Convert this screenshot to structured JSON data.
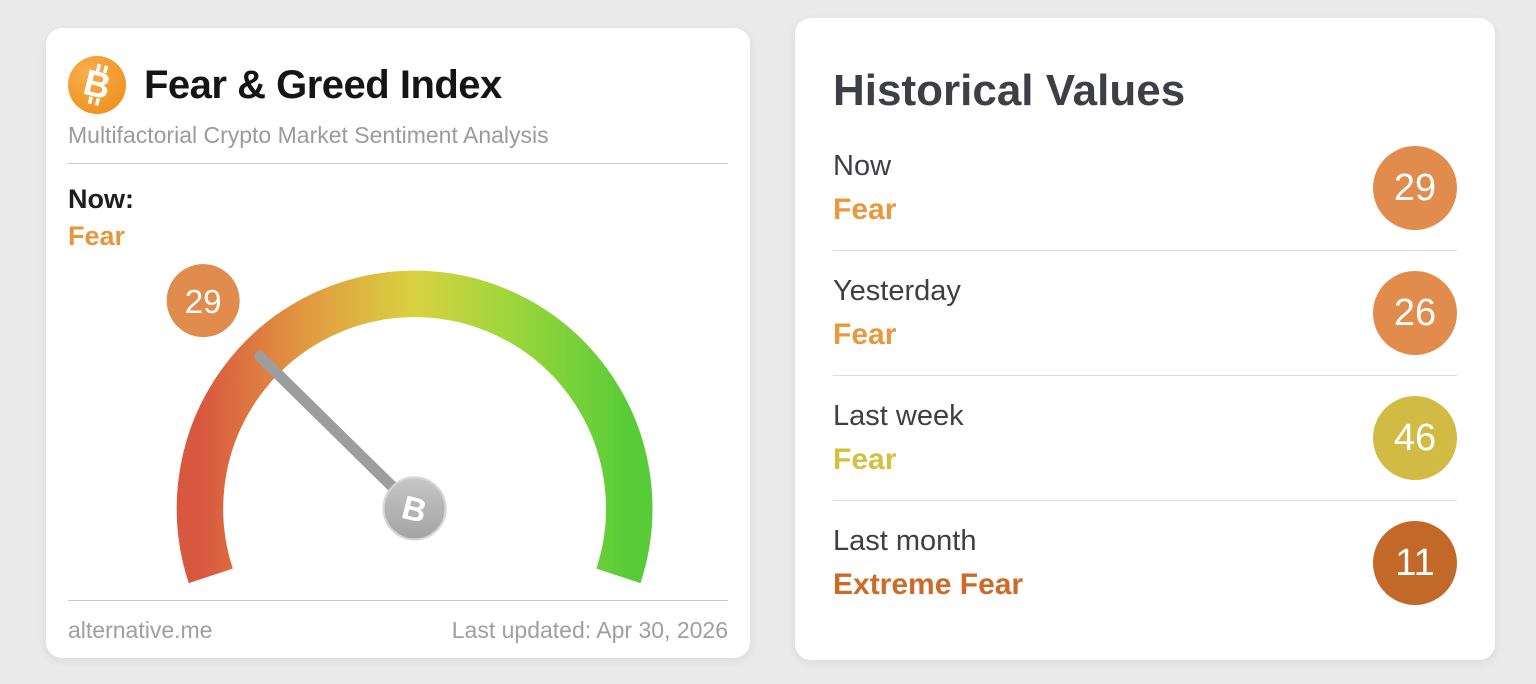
{
  "page": {
    "background": "#EAEAEA"
  },
  "fear_greed_card": {
    "title": "Fear & Greed Index",
    "subtitle": "Multifactorial Crypto Market Sentiment Analysis",
    "now_label": "Now:",
    "now_classification": "Fear",
    "now_color": "#E5973C",
    "logo_symbol": "B",
    "footer": {
      "source": "alternative.me",
      "last_updated": "Last updated: Apr 30, 2026"
    }
  },
  "gauge": {
    "value": 29,
    "min": 0,
    "max": 100,
    "start_angle_deg": 198.3,
    "sweep_deg": 216.6,
    "badge_radius": 268,
    "badge_color": "#E18C4D",
    "hub_symbol": "B",
    "gradient": [
      "#D8573F",
      "#E29A40",
      "#D8D240",
      "#9ED63B",
      "#58CC38"
    ]
  },
  "historical_card": {
    "title": "Historical Values",
    "rows": [
      {
        "period": "Now",
        "classification": "Fear",
        "value": 29,
        "badge_color": "#E18C4D",
        "text_color": "#E8993D"
      },
      {
        "period": "Yesterday",
        "classification": "Fear",
        "value": 26,
        "badge_color": "#E18C4D",
        "text_color": "#E8993D"
      },
      {
        "period": "Last week",
        "classification": "Fear",
        "value": 46,
        "badge_color": "#D2BB45",
        "text_color": "#D3C13E"
      },
      {
        "period": "Last month",
        "classification": "Extreme Fear",
        "value": 11,
        "badge_color": "#C2692A",
        "text_color": "#CE6A28"
      }
    ]
  },
  "chart_data": {
    "type": "gauge",
    "title": "Fear & Greed Index",
    "subtitle": "Multifactorial Crypto Market Sentiment Analysis",
    "value": 29,
    "classification": "Fear",
    "range": [
      0,
      100
    ],
    "color_scale": [
      "#D8573F",
      "#E29A40",
      "#D8D240",
      "#9ED63B",
      "#58CC38"
    ],
    "historical": [
      {
        "period": "Now",
        "value": 29,
        "classification": "Fear"
      },
      {
        "period": "Yesterday",
        "value": 26,
        "classification": "Fear"
      },
      {
        "period": "Last week",
        "value": 46,
        "classification": "Fear"
      },
      {
        "period": "Last month",
        "value": 11,
        "classification": "Extreme Fear"
      }
    ],
    "source": "alternative.me",
    "last_updated": "Apr 30, 2026"
  }
}
